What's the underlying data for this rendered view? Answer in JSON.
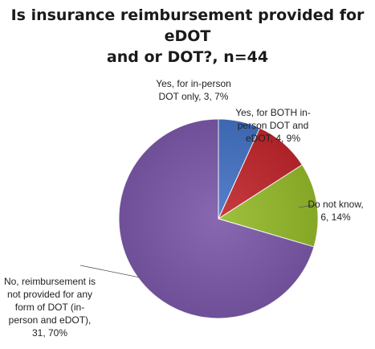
{
  "chart_data": {
    "type": "pie",
    "title_lines": [
      "Is insurance reimbursement provided for eDOT",
      "and or DOT?, n=44"
    ],
    "slices": [
      {
        "label": "Yes, for in-person DOT only, 3, 7%",
        "category": "Yes, for in-person DOT only",
        "value": 3,
        "percent": 7,
        "color": "#4472c4"
      },
      {
        "label": "Yes, for BOTH in-person DOT and eDOT, 4, 9%",
        "category": "Yes, for BOTH in-person DOT and eDOT",
        "value": 4,
        "percent": 9,
        "color": "#c0262c"
      },
      {
        "label": "Do not know, 6, 14%",
        "category": "Do not know",
        "value": 6,
        "percent": 14,
        "color": "#94b92a"
      },
      {
        "label": "No, reimbursement is not provided for any form of DOT (in-person and eDOT), 31, 70%",
        "category": "No, reimbursement is not provided for any form of DOT (in-person and eDOT)",
        "value": 31,
        "percent": 70,
        "color": "#7b58a8"
      }
    ]
  }
}
